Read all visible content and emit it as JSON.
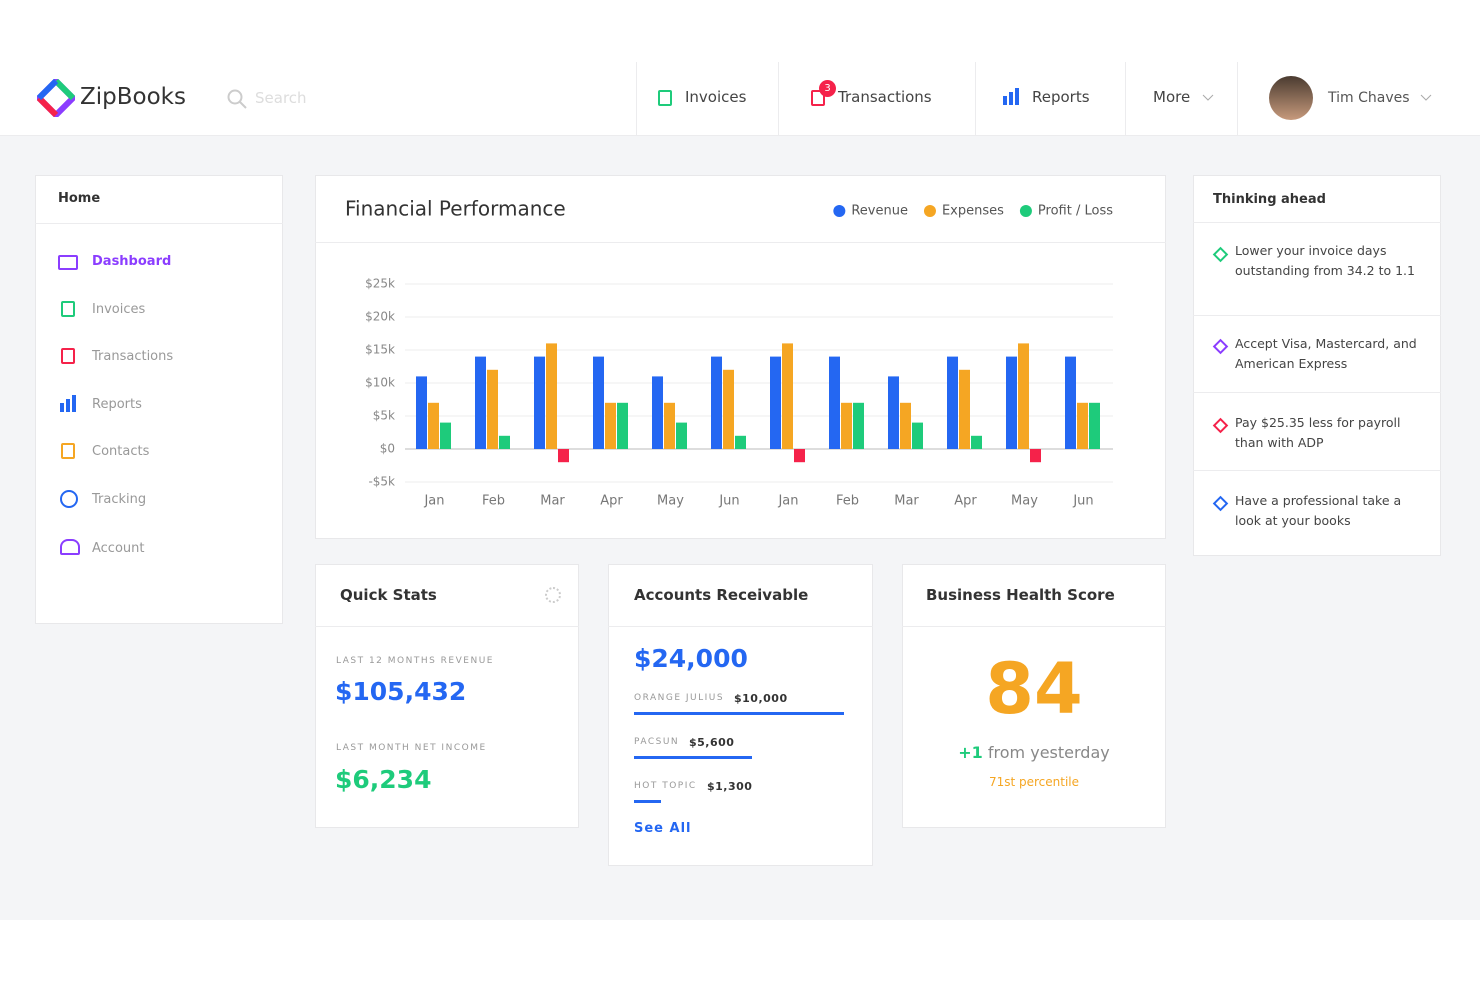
{
  "header": {
    "logo": "ZipBooks",
    "search": "Search",
    "nav": [
      {
        "label": "Invoices"
      },
      {
        "label": "Transactions",
        "badge": "3"
      },
      {
        "label": "Reports"
      },
      {
        "label": "More"
      }
    ],
    "user": "Tim Chaves"
  },
  "sidebar": {
    "title": "Home",
    "items": [
      "Dashboard",
      "Invoices",
      "Transactions",
      "Reports",
      "Contacts",
      "Tracking",
      "Account"
    ]
  },
  "chart_data": {
    "type": "bar",
    "title": "Financial Performance",
    "categories": [
      "Jan",
      "Feb",
      "Mar",
      "Apr",
      "May",
      "Jun",
      "Jan",
      "Feb",
      "Mar",
      "Apr",
      "May",
      "Jun"
    ],
    "series": [
      {
        "name": "Revenue",
        "color": "#2467f2",
        "values": [
          11000,
          14000,
          14000,
          14000,
          11000,
          14000,
          14000,
          14000,
          11000,
          14000,
          14000,
          14000
        ]
      },
      {
        "name": "Expenses",
        "color": "#f5a623",
        "values": [
          7000,
          12000,
          16000,
          7000,
          7000,
          12000,
          16000,
          7000,
          7000,
          12000,
          16000,
          7000
        ]
      },
      {
        "name": "Profit / Loss",
        "color": "#1ecb7b",
        "negative_color": "#f5224a",
        "values": [
          4000,
          2000,
          -2000,
          7000,
          4000,
          2000,
          -2000,
          7000,
          4000,
          2000,
          -2000,
          7000
        ]
      }
    ],
    "ylim": [
      -5000,
      25000
    ],
    "yticks": [
      {
        "value": 25000,
        "label": "$25k"
      },
      {
        "value": 20000,
        "label": "$20k"
      },
      {
        "value": 15000,
        "label": "$15k"
      },
      {
        "value": 10000,
        "label": "$10k"
      },
      {
        "value": 5000,
        "label": "$5k"
      },
      {
        "value": 0,
        "label": "$0"
      },
      {
        "value": -5000,
        "label": "-$5k"
      }
    ],
    "grid": true,
    "legend": "top-right"
  },
  "quick_stats": {
    "title": "Quick Stats",
    "revenue_label": "LAST 12 MONTHS REVENUE",
    "revenue": "$105,432",
    "income_label": "LAST MONTH NET INCOME",
    "income": "$6,234"
  },
  "receivable": {
    "title": "Accounts Receivable",
    "total": "$24,000",
    "rows": [
      {
        "name": "ORANGE JULIUS",
        "value": 10000,
        "label": "$10,000"
      },
      {
        "name": "PACSUN",
        "value": 5600,
        "label": "$5,600"
      },
      {
        "name": "HOT TOPIC",
        "value": 1300,
        "label": "$1,300"
      }
    ],
    "link": "See All"
  },
  "health": {
    "title": "Business Health Score",
    "score": "84",
    "change": "+1",
    "change_text": "from yesterday",
    "percentile": "71st percentile"
  },
  "thinking": {
    "title": "Thinking ahead",
    "items": [
      "Lower your invoice days outstanding from 34.2 to 1.1",
      "Accept Visa, Mastercard, and American Express",
      "Pay $25.35 less for payroll than with ADP",
      "Have a professional take a look at your books"
    ]
  }
}
